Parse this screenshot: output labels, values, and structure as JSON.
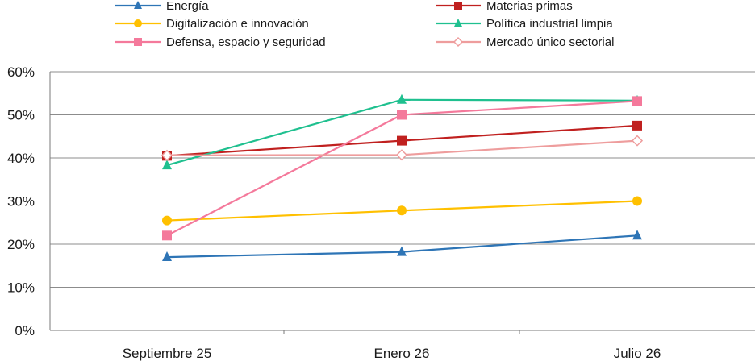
{
  "chart_data": {
    "type": "line",
    "categories": [
      "Septiembre 25",
      "Enero 26",
      "Julio 26"
    ],
    "yticks": [
      "0%",
      "10%",
      "20%",
      "30%",
      "40%",
      "50%",
      "60%"
    ],
    "ylim": [
      0,
      60
    ],
    "grid": true,
    "legend_position": "top",
    "series": [
      {
        "name": "Energía",
        "values": [
          17,
          18.2,
          22
        ],
        "color": "#2e75b6",
        "marker": "triangle"
      },
      {
        "name": "Materias primas",
        "values": [
          40.5,
          44,
          47.5
        ],
        "color": "#c0201f",
        "marker": "square"
      },
      {
        "name": "Digitalización e innovación",
        "values": [
          25.5,
          27.8,
          30
        ],
        "color": "#ffc000",
        "marker": "circle"
      },
      {
        "name": "Política industrial limpia",
        "values": [
          38.3,
          53.5,
          53.3
        ],
        "color": "#1fc08f",
        "marker": "triangle"
      },
      {
        "name": "Defensa, espacio y seguridad",
        "values": [
          22,
          50,
          53.2
        ],
        "color": "#f4799b",
        "marker": "square"
      },
      {
        "name": "Mercado único sectorial",
        "values": [
          40.6,
          40.7,
          44
        ],
        "color": "#ee9d9d",
        "marker": "diamond"
      }
    ]
  }
}
